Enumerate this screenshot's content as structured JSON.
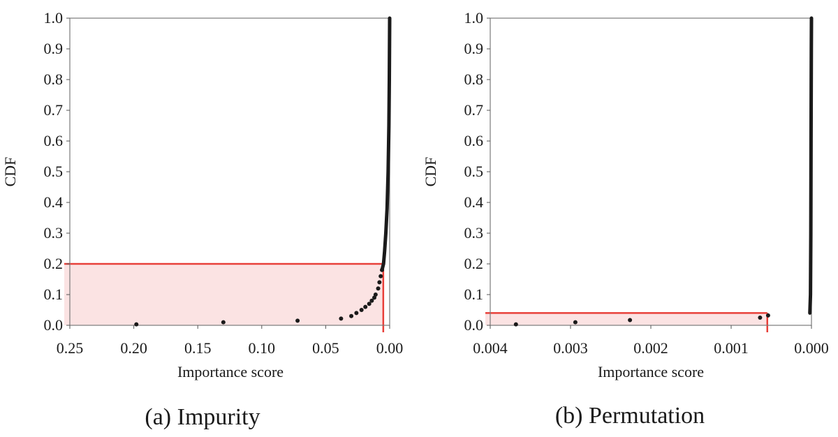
{
  "chart_data": [
    {
      "type": "scatter",
      "caption": "(a)  Impurity",
      "xlabel": "Importance score",
      "ylabel": "CDF",
      "xlim": [
        0.25,
        0.0
      ],
      "ylim": [
        0.0,
        1.0
      ],
      "x_ticks": [
        "0.25",
        "0.20",
        "0.15",
        "0.10",
        "0.05",
        "0.00"
      ],
      "y_ticks": [
        "0.0",
        "0.1",
        "0.2",
        "0.3",
        "0.4",
        "0.5",
        "0.6",
        "0.7",
        "0.8",
        "0.9",
        "1.0"
      ],
      "x_tick_values": [
        0.25,
        0.2,
        0.15,
        0.1,
        0.05,
        0.0
      ],
      "y_tick_values": [
        0.0,
        0.1,
        0.2,
        0.3,
        0.4,
        0.5,
        0.6,
        0.7,
        0.8,
        0.9,
        1.0
      ],
      "grid": false,
      "outlier_points": [
        {
          "x": 0.198,
          "y": 0.003
        },
        {
          "x": 0.13,
          "y": 0.01
        },
        {
          "x": 0.072,
          "y": 0.015
        },
        {
          "x": 0.038,
          "y": 0.022
        },
        {
          "x": 0.03,
          "y": 0.03
        },
        {
          "x": 0.026,
          "y": 0.04
        },
        {
          "x": 0.022,
          "y": 0.05
        },
        {
          "x": 0.019,
          "y": 0.06
        },
        {
          "x": 0.016,
          "y": 0.07
        },
        {
          "x": 0.014,
          "y": 0.08
        },
        {
          "x": 0.012,
          "y": 0.09
        },
        {
          "x": 0.011,
          "y": 0.1
        },
        {
          "x": 0.009,
          "y": 0.12
        },
        {
          "x": 0.008,
          "y": 0.14
        },
        {
          "x": 0.007,
          "y": 0.16
        },
        {
          "x": 0.006,
          "y": 0.18
        }
      ],
      "curve": [
        {
          "x": 0.006,
          "y": 0.18
        },
        {
          "x": 0.0048,
          "y": 0.2
        },
        {
          "x": 0.004,
          "y": 0.24
        },
        {
          "x": 0.003,
          "y": 0.3
        },
        {
          "x": 0.002,
          "y": 0.38
        },
        {
          "x": 0.0012,
          "y": 0.5
        },
        {
          "x": 0.0006,
          "y": 0.65
        },
        {
          "x": 0.0003,
          "y": 0.8
        },
        {
          "x": 0.0001,
          "y": 0.92
        },
        {
          "x": 0.0,
          "y": 1.0
        }
      ],
      "highlight": {
        "x_threshold": 0.005,
        "cdf": 0.2,
        "color": "#e8403a",
        "fill": "#fbe3e3"
      }
    },
    {
      "type": "scatter",
      "caption": "(b)  Permutation",
      "xlabel": "Importance score",
      "ylabel": "CDF",
      "xlim": [
        0.004,
        0.0
      ],
      "ylim": [
        0.0,
        1.0
      ],
      "x_ticks": [
        "0.004",
        "0.003",
        "0.002",
        "0.001",
        "0.000"
      ],
      "y_ticks": [
        "0.0",
        "0.1",
        "0.2",
        "0.3",
        "0.4",
        "0.5",
        "0.6",
        "0.7",
        "0.8",
        "0.9",
        "1.0"
      ],
      "x_tick_values": [
        0.004,
        0.003,
        0.002,
        0.001,
        0.0
      ],
      "y_tick_values": [
        0.0,
        0.1,
        0.2,
        0.3,
        0.4,
        0.5,
        0.6,
        0.7,
        0.8,
        0.9,
        1.0
      ],
      "grid": false,
      "outlier_points": [
        {
          "x": 0.00368,
          "y": 0.003
        },
        {
          "x": 0.00294,
          "y": 0.01
        },
        {
          "x": 0.00226,
          "y": 0.017
        },
        {
          "x": 0.00064,
          "y": 0.025
        },
        {
          "x": 0.00054,
          "y": 0.032
        }
      ],
      "curve": [
        {
          "x": 2e-05,
          "y": 0.04
        },
        {
          "x": 1.2e-05,
          "y": 0.1
        },
        {
          "x": 8e-06,
          "y": 0.3
        },
        {
          "x": 5e-06,
          "y": 0.6
        },
        {
          "x": 2e-06,
          "y": 0.9
        },
        {
          "x": 0.0,
          "y": 1.0
        }
      ],
      "highlight": {
        "x_threshold": 0.00055,
        "cdf": 0.04,
        "color": "#e8403a",
        "fill": "#fbe3e3"
      }
    }
  ]
}
